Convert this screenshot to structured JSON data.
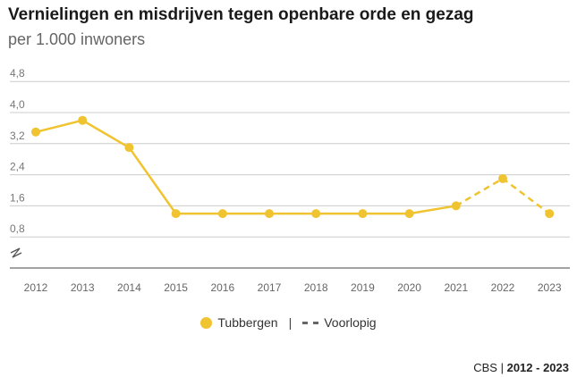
{
  "header": {
    "title": "Vernielingen en misdrijven tegen openbare orde en gezag",
    "subtitle": "per 1.000 inwoners"
  },
  "legend": {
    "series_label": "Tubbergen",
    "separator": "|",
    "provisional_label": "Voorlopig"
  },
  "footer": {
    "source": "CBS",
    "separator": "|",
    "period": "2012 - 2023"
  },
  "colors": {
    "series": "#f0c330",
    "grid": "#cccccc",
    "axis": "#444444"
  },
  "chart_data": {
    "type": "line",
    "categories": [
      "2012",
      "2013",
      "2014",
      "2015",
      "2016",
      "2017",
      "2018",
      "2019",
      "2020",
      "2021",
      "2022",
      "2023"
    ],
    "series": [
      {
        "name": "Tubbergen",
        "values": [
          3.5,
          3.8,
          3.1,
          1.4,
          1.4,
          1.4,
          1.4,
          1.4,
          1.4,
          1.6,
          2.3,
          1.4
        ],
        "provisional_from_index": 9
      }
    ],
    "y_ticks": [
      "0,8",
      "1,6",
      "2,4",
      "3,2",
      "4,0",
      "4,8"
    ],
    "ylim": [
      0,
      4.8
    ],
    "axis_break": true,
    "grid": true,
    "legend_position": "bottom-center"
  }
}
